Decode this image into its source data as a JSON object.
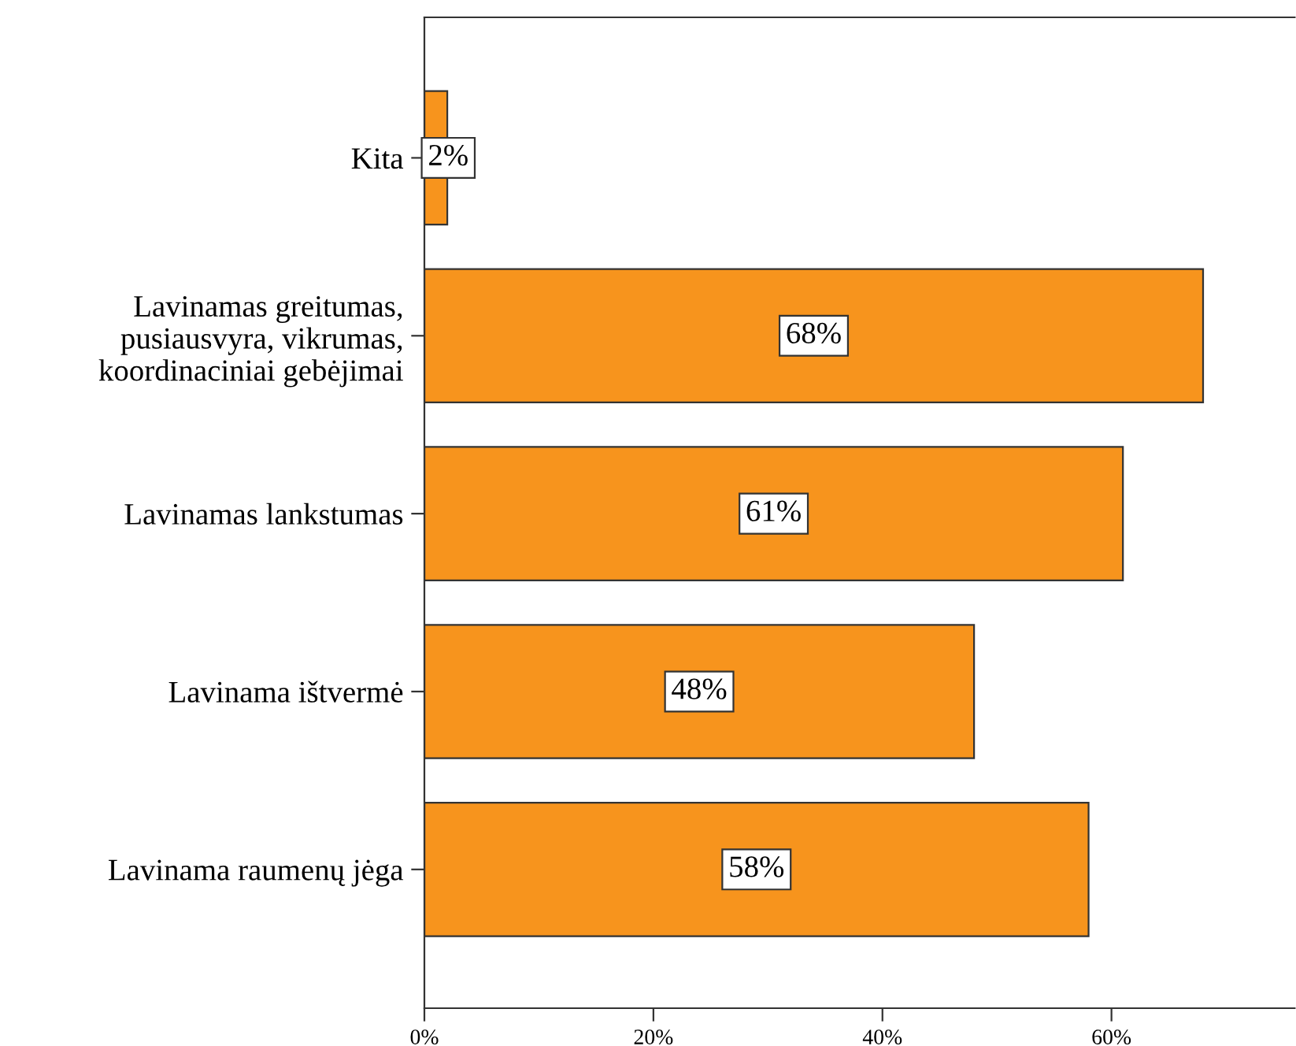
{
  "chart_data": {
    "type": "bar",
    "orientation": "horizontal",
    "categories": [
      "Kita",
      "Lavinamas greitumas,\npusiausvyra, vikrumas,\nkoordinaciniai gebėjimai",
      "Lavinamas lankstumas",
      "Lavinama ištvermė",
      "Lavinama raumenų jėga"
    ],
    "values": [
      2,
      68,
      61,
      48,
      58
    ],
    "value_labels": [
      "2%",
      "68%",
      "61%",
      "48%",
      "58%"
    ],
    "color": "#f7941d",
    "xlim": [
      0,
      76
    ],
    "xticks": [
      {
        "value": 0,
        "label": "0%"
      },
      {
        "value": 20,
        "label": "20%"
      },
      {
        "value": 40,
        "label": "40%"
      },
      {
        "value": 60,
        "label": "60%"
      }
    ],
    "grid": false
  }
}
